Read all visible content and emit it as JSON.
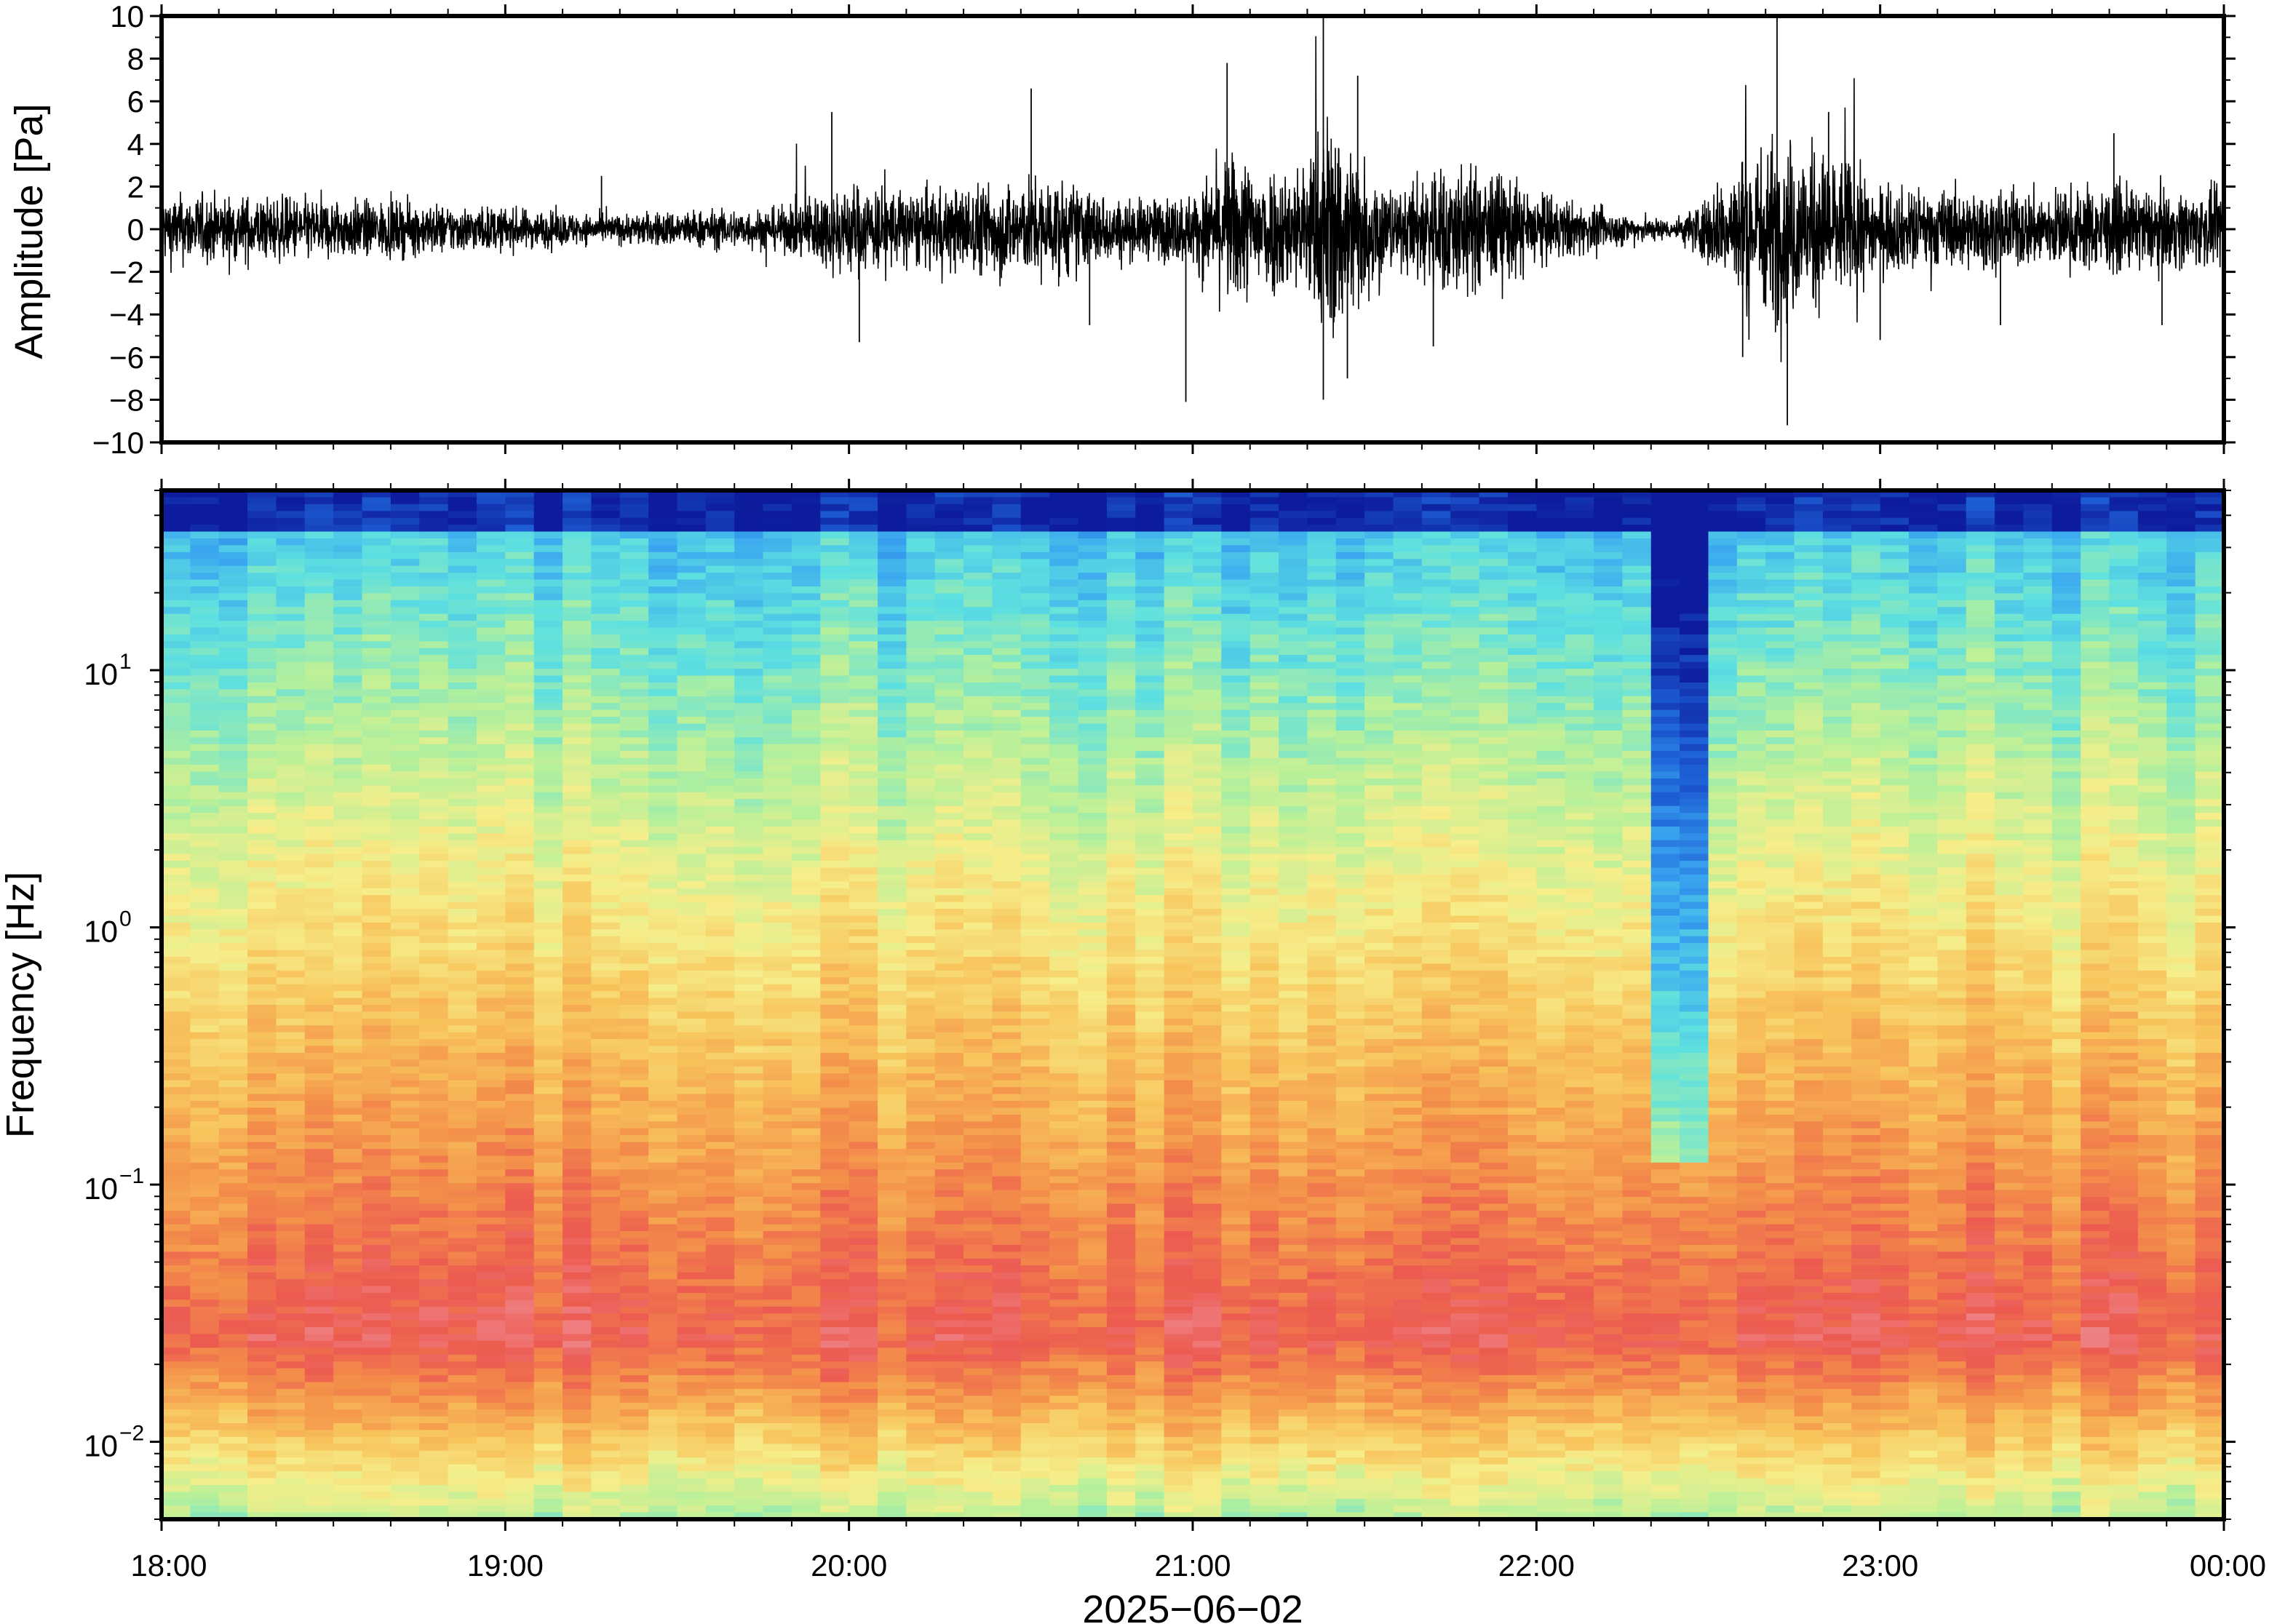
{
  "chart_data": [
    {
      "type": "line",
      "panel": "waveform",
      "title": "",
      "xlabel": "",
      "ylabel": "Amplitude [Pa]",
      "ylim": [
        -10,
        10
      ],
      "y_ticks": [
        -10,
        -8,
        -6,
        -4,
        -2,
        0,
        2,
        4,
        6,
        8,
        10
      ],
      "y_tick_labels": [
        "−10",
        "−8",
        "−6",
        "−4",
        "−2",
        "0",
        "2",
        "4",
        "6",
        "8",
        "10"
      ],
      "x_range_hours": [
        18,
        24
      ],
      "grid": false,
      "color": "#000000",
      "envelope": {
        "x_hours": [
          18.0,
          18.5,
          19.0,
          19.3,
          19.5,
          19.8,
          19.9,
          20.0,
          20.2,
          20.4,
          20.6,
          20.8,
          21.0,
          21.1,
          21.3,
          21.4,
          21.5,
          21.6,
          21.7,
          21.9,
          22.0,
          22.2,
          22.4,
          22.5,
          22.6,
          22.7,
          22.9,
          23.0,
          23.3,
          23.6,
          24.0
        ],
        "amplitude": [
          1.5,
          1.3,
          0.9,
          0.6,
          0.8,
          0.9,
          1.6,
          2.0,
          1.6,
          2.0,
          2.2,
          1.2,
          1.5,
          3.2,
          2.6,
          5.0,
          3.2,
          1.4,
          3.0,
          2.4,
          1.6,
          0.8,
          0.4,
          1.5,
          3.2,
          4.0,
          3.0,
          1.8,
          1.6,
          1.8,
          1.6
        ]
      },
      "peaks": [
        {
          "x_hour": 19.28,
          "y": 2.5
        },
        {
          "x_hour": 19.95,
          "y": 5.5
        },
        {
          "x_hour": 20.03,
          "y": -5.3
        },
        {
          "x_hour": 20.53,
          "y": 6.6
        },
        {
          "x_hour": 20.7,
          "y": -4.5
        },
        {
          "x_hour": 20.98,
          "y": -8.1
        },
        {
          "x_hour": 21.1,
          "y": 7.8
        },
        {
          "x_hour": 21.38,
          "y": 10.0
        },
        {
          "x_hour": 21.38,
          "y": -8.0
        },
        {
          "x_hour": 21.45,
          "y": -7.0
        },
        {
          "x_hour": 21.48,
          "y": 7.2
        },
        {
          "x_hour": 21.7,
          "y": -5.5
        },
        {
          "x_hour": 22.7,
          "y": 10.0
        },
        {
          "x_hour": 22.73,
          "y": -9.2
        },
        {
          "x_hour": 22.6,
          "y": -6.0
        },
        {
          "x_hour": 22.85,
          "y": 5.5
        },
        {
          "x_hour": 23.0,
          "y": -5.2
        },
        {
          "x_hour": 23.35,
          "y": -4.5
        },
        {
          "x_hour": 23.82,
          "y": -4.5
        },
        {
          "x_hour": 23.68,
          "y": 4.5
        }
      ]
    },
    {
      "type": "heatmap",
      "panel": "spectrogram",
      "title": "",
      "xlabel": "2025−06−02",
      "ylabel": "Frequency [Hz]",
      "yscale": "log",
      "ylim": [
        0.005,
        50
      ],
      "y_tick_values": [
        0.01,
        0.1,
        1,
        10
      ],
      "y_tick_labels": [
        {
          "base": "10",
          "exp": "−2"
        },
        {
          "base": "10",
          "exp": "−1"
        },
        {
          "base": "10",
          "exp": "0"
        },
        {
          "base": "10",
          "exp": "1"
        }
      ],
      "x_range_hours": [
        18,
        24
      ],
      "x_tick_labels": [
        "18:00",
        "19:00",
        "20:00",
        "21:00",
        "22:00",
        "23:00",
        "00:00"
      ],
      "colormap": [
        "#0d1c9c",
        "#1d5fd6",
        "#3aa6f0",
        "#5ee0e0",
        "#b6f09a",
        "#f6ee8a",
        "#f8c45c",
        "#f4924a",
        "#ec5a50",
        "#f08a90"
      ],
      "time_columns": 72,
      "quiet_band_hours": [
        22.3,
        22.48
      ],
      "quiet_band_max_freq": 0.12,
      "grid": false
    }
  ]
}
